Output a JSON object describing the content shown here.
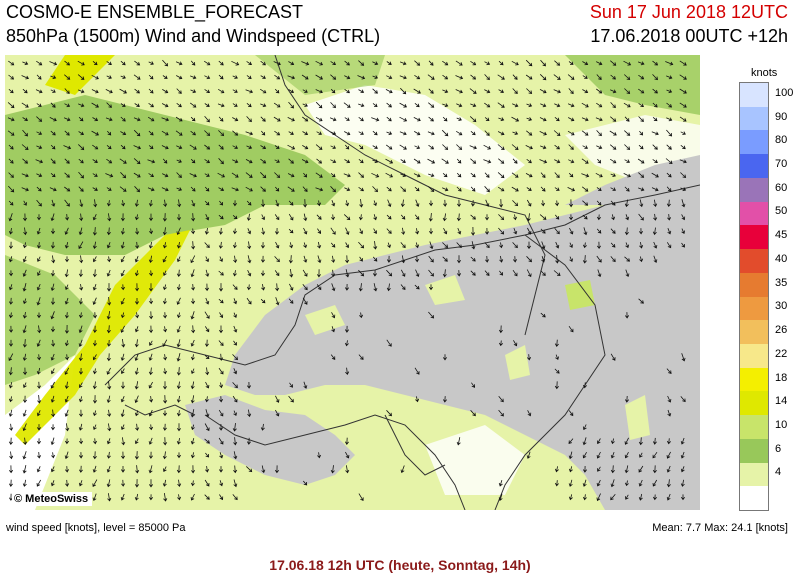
{
  "header": {
    "title_line1": "COSMO-E ENSEMBLE_FORECAST",
    "title_line2": "850hPa (1500m) Wind and Windspeed (CTRL)",
    "valid_time": "Sun 17 Jun 2018 12UTC",
    "run_time": "17.06.2018 00UTC +12h"
  },
  "map": {
    "copyright": "© MeteoSwiss",
    "terrain_color": "#c8c8c8",
    "arrow_color": "#111111",
    "border_color": "#333333"
  },
  "legend": {
    "unit": "knots",
    "items": [
      {
        "label": "100",
        "color": "#d8e4ff"
      },
      {
        "label": "90",
        "color": "#a8c4ff"
      },
      {
        "label": "80",
        "color": "#7a9cff"
      },
      {
        "label": "70",
        "color": "#4a66f0"
      },
      {
        "label": "60",
        "color": "#9a74b8"
      },
      {
        "label": "50",
        "color": "#e250a8"
      },
      {
        "label": "45",
        "color": "#e8003a"
      },
      {
        "label": "40",
        "color": "#e24c2c"
      },
      {
        "label": "35",
        "color": "#e67b30"
      },
      {
        "label": "30",
        "color": "#ee9a40"
      },
      {
        "label": "26",
        "color": "#f2bf5c"
      },
      {
        "label": "22",
        "color": "#f7e88a"
      },
      {
        "label": "18",
        "color": "#f4ef00"
      },
      {
        "label": "14",
        "color": "#dfe800"
      },
      {
        "label": "10",
        "color": "#c8e46a"
      },
      {
        "label": "6",
        "color": "#98c85a"
      },
      {
        "label": "4",
        "color": "#e6f3a8"
      },
      {
        "label": "",
        "color": "#ffffff"
      }
    ]
  },
  "footer": {
    "left": "wind speed [knots], level = 85000 Pa",
    "right": "Mean:   7.7 Max:  24.1 [knots]"
  },
  "caption": "17.06.18 12h UTC (heute, Sonntag, 14h)"
}
